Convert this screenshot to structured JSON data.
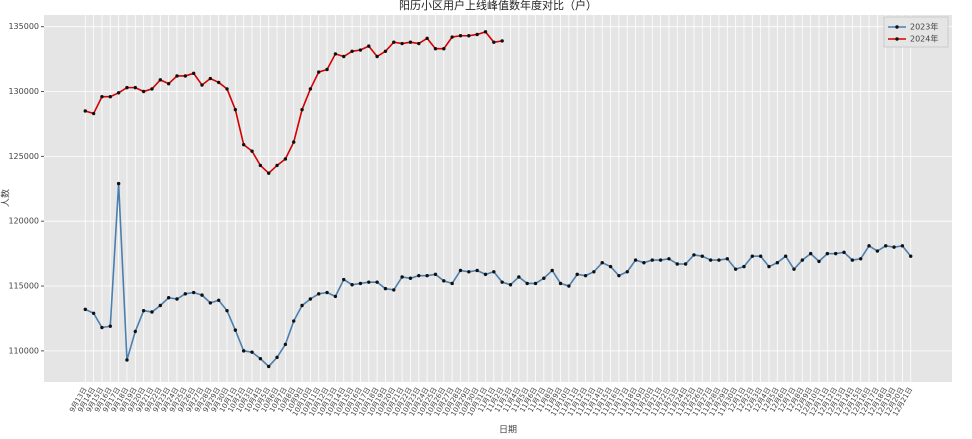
{
  "chart_data": {
    "type": "line",
    "title": "阳历小区用户上线峰值数年度对比（户）",
    "xlabel": "日期",
    "ylabel": "人数",
    "categories": [
      "9月13日",
      "9月14日",
      "9月15日",
      "9月16日",
      "9月17日",
      "9月18日",
      "9月19日",
      "9月20日",
      "9月21日",
      "9月22日",
      "9月23日",
      "9月24日",
      "9月25日",
      "9月26日",
      "9月27日",
      "9月28日",
      "9月29日",
      "9月30日",
      "10月1日",
      "10月2日",
      "10月3日",
      "10月4日",
      "10月5日",
      "10月6日",
      "10月7日",
      "10月8日",
      "10月9日",
      "10月10日",
      "10月11日",
      "10月12日",
      "10月13日",
      "10月14日",
      "10月15日",
      "10月16日",
      "10月17日",
      "10月18日",
      "10月19日",
      "10月20日",
      "10月21日",
      "10月22日",
      "10月23日",
      "10月24日",
      "10月25日",
      "10月26日",
      "10月27日",
      "10月28日",
      "10月29日",
      "10月30日",
      "10月31日",
      "11月1日",
      "11月2日",
      "11月3日",
      "11月4日",
      "11月5日",
      "11月6日",
      "11月7日",
      "11月8日",
      "11月9日",
      "11月10日",
      "11月11日",
      "11月12日",
      "11月13日",
      "11月14日",
      "11月15日",
      "11月16日",
      "11月17日",
      "11月18日",
      "11月19日",
      "11月20日",
      "11月21日",
      "11月22日",
      "11月23日",
      "11月24日",
      "11月25日",
      "11月26日",
      "11月27日",
      "11月28日",
      "11月29日",
      "11月30日",
      "12月1日",
      "12月2日",
      "12月3日",
      "12月4日",
      "12月5日",
      "12月6日",
      "12月7日",
      "12月8日",
      "12月9日",
      "12月10日",
      "12月11日",
      "12月12日",
      "12月13日",
      "12月14日",
      "12月15日",
      "12月16日",
      "12月17日",
      "12月18日",
      "12月19日",
      "12月20日",
      "12月21日"
    ],
    "series": [
      {
        "name": "2023年",
        "color": "#4a7fb0",
        "values": [
          113200,
          112900,
          111800,
          111900,
          122900,
          109300,
          111500,
          113100,
          113000,
          113500,
          114100,
          114000,
          114400,
          114500,
          114300,
          113700,
          113900,
          113100,
          111600,
          110000,
          109900,
          109400,
          108800,
          109500,
          110500,
          112300,
          113500,
          114000,
          114400,
          114500,
          114200,
          115500,
          115100,
          115200,
          115300,
          115300,
          114800,
          114700,
          115700,
          115600,
          115800,
          115800,
          115900,
          115400,
          115200,
          116200,
          116100,
          116200,
          115900,
          116100,
          115300,
          115100,
          115700,
          115200,
          115200,
          115600,
          116200,
          115200,
          115000,
          115900,
          115800,
          116100,
          116800,
          116500,
          115800,
          116100,
          117000,
          116800,
          117000,
          117000,
          117100,
          116700,
          116700,
          117400,
          117300,
          117000,
          117000,
          117100,
          116300,
          116500,
          117300,
          117300,
          116500,
          116800,
          117300,
          116300,
          117000,
          117500,
          116900,
          117500,
          117500,
          117600,
          117000,
          117100,
          118100,
          117700,
          118100,
          118000,
          118100,
          117300
        ]
      },
      {
        "name": "2024年",
        "color": "#d40000",
        "values": [
          128500,
          128300,
          129600,
          129600,
          129900,
          130300,
          130300,
          130000,
          130200,
          130900,
          130600,
          131200,
          131200,
          131400,
          130500,
          131000,
          130700,
          130200,
          128600,
          125900,
          125400,
          124300,
          123700,
          124300,
          124800,
          126100,
          128600,
          130200,
          131500,
          131700,
          132900,
          132700,
          133100,
          133200,
          133500,
          132700,
          133100,
          133800,
          133700,
          133800,
          133700,
          134100,
          133300,
          133300,
          134200,
          134300,
          134300,
          134400,
          134600,
          133800,
          133900,
          null,
          null,
          null,
          null,
          null,
          null,
          null,
          null,
          null,
          null,
          null,
          null,
          null,
          null,
          null,
          null,
          null,
          null,
          null,
          null,
          null,
          null,
          null,
          null,
          null,
          null,
          null,
          null,
          null,
          null,
          null,
          null,
          null,
          null,
          null,
          null,
          null,
          null,
          null,
          null,
          null,
          null,
          null,
          null,
          null,
          null,
          null,
          null,
          null
        ]
      }
    ],
    "ylim": [
      107600,
      135900
    ],
    "yticks": [
      110000,
      115000,
      120000,
      125000,
      130000,
      135000
    ],
    "grid": true,
    "legend": "upper right"
  }
}
